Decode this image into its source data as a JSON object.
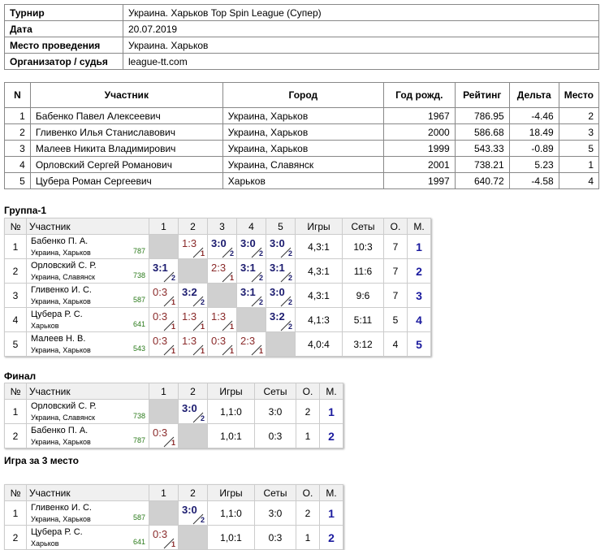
{
  "info": {
    "rows": [
      [
        "Турнир",
        "Украина. Харьков Top Spin League (Супер)"
      ],
      [
        "Дата",
        "20.07.2019"
      ],
      [
        "Место проведения",
        "Украина. Харьков"
      ],
      [
        "Организатор / судья",
        "league-tt.com"
      ]
    ]
  },
  "participants": {
    "header": [
      "N",
      "Участник",
      "Город",
      "Год рожд.",
      "Рейтинг",
      "Дельта",
      "Место"
    ],
    "rows": [
      [
        1,
        "Бабенко Павел Алексеевич",
        "Украина, Харьков",
        1967,
        786.95,
        -4.46,
        2
      ],
      [
        2,
        "Гливенко Илья Станиславович",
        "Украина, Харьков",
        2000,
        586.68,
        18.49,
        3
      ],
      [
        3,
        "Малеев Никита Владимирович",
        "Украина, Харьков",
        1999,
        543.33,
        -0.89,
        5
      ],
      [
        4,
        "Орловский Сергей Романович",
        "Украина, Славянск",
        2001,
        738.21,
        5.23,
        1
      ],
      [
        5,
        "Цубера Роман Сергеевич",
        "Харьков",
        1997,
        640.72,
        -4.58,
        4
      ]
    ]
  },
  "groups": [
    {
      "title": "Группа-1",
      "header": [
        "№",
        "Участник",
        "1",
        "2",
        "3",
        "4",
        "5",
        "Игры",
        "Сеты",
        "О.",
        "М."
      ],
      "rows": [
        {
          "n": 1,
          "name": "Бабенко П. А.",
          "city": "Украина, Харьков",
          "rating": 787,
          "cells": [
            null,
            {
              "score": "1:3",
              "pts": 1
            },
            {
              "score": "3:0",
              "pts": 2
            },
            {
              "score": "3:0",
              "pts": 2
            },
            {
              "score": "3:0",
              "pts": 2
            }
          ],
          "games": "4,3:1",
          "sets": "10:3",
          "points": 7,
          "place": 1
        },
        {
          "n": 2,
          "name": "Орловский С. Р.",
          "city": "Украина, Славянск",
          "rating": 738,
          "cells": [
            {
              "score": "3:1",
              "pts": 2
            },
            null,
            {
              "score": "2:3",
              "pts": 1
            },
            {
              "score": "3:1",
              "pts": 2
            },
            {
              "score": "3:1",
              "pts": 2
            }
          ],
          "games": "4,3:1",
          "sets": "11:6",
          "points": 7,
          "place": 2
        },
        {
          "n": 3,
          "name": "Гливенко И. С.",
          "city": "Украина, Харьков",
          "rating": 587,
          "cells": [
            {
              "score": "0:3",
              "pts": 1
            },
            {
              "score": "3:2",
              "pts": 2
            },
            null,
            {
              "score": "3:1",
              "pts": 2
            },
            {
              "score": "3:0",
              "pts": 2
            }
          ],
          "games": "4,3:1",
          "sets": "9:6",
          "points": 7,
          "place": 3
        },
        {
          "n": 4,
          "name": "Цубера Р. С.",
          "city": "Харьков",
          "rating": 641,
          "cells": [
            {
              "score": "0:3",
              "pts": 1
            },
            {
              "score": "1:3",
              "pts": 1
            },
            {
              "score": "1:3",
              "pts": 1
            },
            null,
            {
              "score": "3:2",
              "pts": 2
            }
          ],
          "games": "4,1:3",
          "sets": "5:11",
          "points": 5,
          "place": 4
        },
        {
          "n": 5,
          "name": "Малеев Н. В.",
          "city": "Украина, Харьков",
          "rating": 543,
          "cells": [
            {
              "score": "0:3",
              "pts": 1
            },
            {
              "score": "1:3",
              "pts": 1
            },
            {
              "score": "0:3",
              "pts": 1
            },
            {
              "score": "2:3",
              "pts": 1
            },
            null
          ],
          "games": "4,0:4",
          "sets": "3:12",
          "points": 4,
          "place": 5
        }
      ]
    },
    {
      "title": "Финал",
      "header": [
        "№",
        "Участник",
        "1",
        "2",
        "Игры",
        "Сеты",
        "О.",
        "М."
      ],
      "rows": [
        {
          "n": 1,
          "name": "Орловский С. Р.",
          "city": "Украина, Славянск",
          "rating": 738,
          "cells": [
            null,
            {
              "score": "3:0",
              "pts": 2
            }
          ],
          "games": "1,1:0",
          "sets": "3:0",
          "points": 2,
          "place": 1
        },
        {
          "n": 2,
          "name": "Бабенко П. А.",
          "city": "Украина, Харьков",
          "rating": 787,
          "cells": [
            {
              "score": "0:3",
              "pts": 1
            },
            null
          ],
          "games": "1,0:1",
          "sets": "0:3",
          "points": 1,
          "place": 2
        }
      ]
    },
    {
      "title": "Игра за 3 место",
      "header": [
        "№",
        "Участник",
        "1",
        "2",
        "Игры",
        "Сеты",
        "О.",
        "М."
      ],
      "rows": [
        {
          "n": 1,
          "name": "Гливенко И. С.",
          "city": "Украина, Харьков",
          "rating": 587,
          "cells": [
            null,
            {
              "score": "3:0",
              "pts": 2
            }
          ],
          "games": "1,1:0",
          "sets": "3:0",
          "points": 2,
          "place": 1
        },
        {
          "n": 2,
          "name": "Цубера Р. С.",
          "city": "Харьков",
          "rating": 641,
          "cells": [
            {
              "score": "0:3",
              "pts": 1
            },
            null
          ],
          "games": "1,0:1",
          "sets": "0:3",
          "points": 1,
          "place": 2
        }
      ]
    }
  ]
}
